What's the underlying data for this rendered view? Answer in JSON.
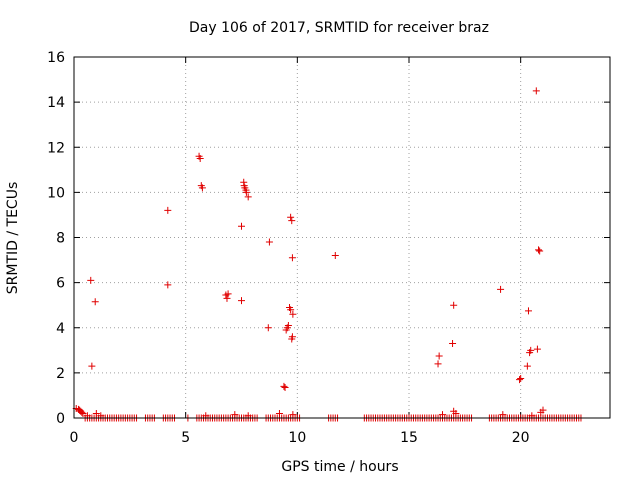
{
  "chart_data": {
    "type": "scatter",
    "title": "Day 106 of 2017, SRMTID for receiver braz",
    "xlabel": "GPS time / hours",
    "ylabel": "SRMTID / TECUs",
    "xlim": [
      0,
      24
    ],
    "ylim": [
      0,
      16
    ],
    "x_ticks": [
      0,
      5,
      10,
      15,
      20
    ],
    "y_ticks": [
      0,
      2,
      4,
      6,
      8,
      10,
      12,
      14,
      16
    ],
    "x_tick_labels": [
      "0",
      "5",
      "10",
      "15",
      "20"
    ],
    "y_tick_labels": [
      "0",
      "2",
      "4",
      "6",
      "8",
      "10",
      "12",
      "14",
      "16"
    ],
    "grid": true,
    "marker": "+",
    "color": "#e00000",
    "series": [
      {
        "name": "SRMTID",
        "points": [
          [
            0.1,
            0.42
          ],
          [
            0.2,
            0.38
          ],
          [
            0.25,
            0.35
          ],
          [
            0.3,
            0.3
          ],
          [
            0.35,
            0.25
          ],
          [
            0.4,
            0.2
          ],
          [
            0.75,
            6.1
          ],
          [
            0.8,
            2.3
          ],
          [
            0.95,
            5.15
          ],
          [
            4.2,
            9.2
          ],
          [
            4.2,
            5.9
          ],
          [
            5.6,
            11.6
          ],
          [
            5.65,
            11.5
          ],
          [
            5.7,
            10.3
          ],
          [
            5.75,
            10.2
          ],
          [
            6.8,
            5.45
          ],
          [
            6.85,
            5.3
          ],
          [
            6.9,
            5.5
          ],
          [
            7.5,
            8.5
          ],
          [
            7.5,
            5.2
          ],
          [
            7.6,
            10.45
          ],
          [
            7.62,
            10.3
          ],
          [
            7.65,
            10.2
          ],
          [
            7.7,
            10.1
          ],
          [
            7.72,
            10.0
          ],
          [
            7.8,
            9.8
          ],
          [
            8.7,
            4.0
          ],
          [
            8.75,
            7.8
          ],
          [
            9.4,
            1.4
          ],
          [
            9.45,
            1.35
          ],
          [
            9.5,
            3.9
          ],
          [
            9.55,
            4.0
          ],
          [
            9.6,
            4.1
          ],
          [
            9.65,
            4.9
          ],
          [
            9.7,
            4.8
          ],
          [
            9.75,
            3.5
          ],
          [
            9.78,
            3.6
          ],
          [
            9.8,
            4.6
          ],
          [
            9.7,
            8.9
          ],
          [
            9.75,
            8.75
          ],
          [
            9.78,
            7.1
          ],
          [
            11.7,
            7.2
          ],
          [
            16.3,
            2.4
          ],
          [
            16.35,
            2.75
          ],
          [
            16.95,
            3.3
          ],
          [
            17.0,
            5.0
          ],
          [
            19.1,
            5.7
          ],
          [
            19.95,
            1.7
          ],
          [
            20.0,
            1.75
          ],
          [
            20.3,
            2.3
          ],
          [
            20.35,
            4.75
          ],
          [
            20.4,
            2.9
          ],
          [
            20.45,
            3.0
          ],
          [
            20.7,
            14.5
          ],
          [
            20.75,
            3.05
          ],
          [
            20.8,
            7.45
          ],
          [
            20.85,
            7.4
          ],
          [
            0.6,
            0.1
          ],
          [
            1.0,
            0.2
          ],
          [
            1.2,
            0.1
          ],
          [
            5.9,
            0.1
          ],
          [
            7.2,
            0.15
          ],
          [
            7.8,
            0.1
          ],
          [
            9.2,
            0.2
          ],
          [
            9.8,
            0.15
          ],
          [
            16.5,
            0.15
          ],
          [
            17.0,
            0.3
          ],
          [
            17.1,
            0.2
          ],
          [
            19.2,
            0.15
          ],
          [
            20.5,
            0.1
          ],
          [
            20.9,
            0.25
          ],
          [
            21.0,
            0.35
          ]
        ],
        "zero_value_times": [
          0.5,
          0.6,
          0.7,
          0.8,
          0.9,
          1.0,
          1.1,
          1.2,
          1.3,
          1.4,
          1.5,
          1.6,
          1.7,
          1.8,
          1.9,
          2.0,
          2.1,
          2.2,
          2.3,
          2.4,
          2.5,
          2.6,
          2.7,
          2.8,
          3.2,
          3.3,
          3.4,
          3.5,
          3.6,
          4.0,
          4.1,
          4.2,
          4.3,
          4.4,
          4.5,
          5.1,
          5.5,
          5.6,
          5.7,
          5.8,
          5.9,
          6.0,
          6.1,
          6.2,
          6.3,
          6.4,
          6.5,
          6.6,
          6.7,
          6.8,
          6.9,
          7.0,
          7.1,
          7.2,
          7.3,
          7.4,
          7.5,
          7.6,
          7.7,
          7.8,
          7.9,
          8.0,
          8.1,
          8.2,
          8.6,
          8.7,
          8.8,
          8.9,
          9.0,
          9.1,
          9.2,
          9.3,
          9.4,
          9.5,
          9.6,
          9.7,
          9.8,
          9.9,
          10.0,
          10.1,
          11.4,
          11.5,
          11.6,
          11.7,
          11.8,
          13.0,
          13.1,
          13.2,
          13.3,
          13.4,
          13.5,
          13.6,
          13.7,
          13.8,
          13.9,
          14.0,
          14.1,
          14.2,
          14.3,
          14.4,
          14.5,
          14.6,
          14.7,
          14.8,
          14.9,
          15.0,
          15.1,
          15.2,
          15.3,
          15.4,
          15.5,
          15.6,
          15.7,
          15.8,
          15.9,
          16.0,
          16.1,
          16.2,
          16.3,
          16.4,
          16.5,
          16.6,
          16.7,
          16.8,
          16.9,
          17.0,
          17.1,
          17.2,
          17.3,
          17.4,
          17.5,
          17.6,
          17.7,
          17.8,
          18.6,
          18.7,
          18.8,
          18.9,
          19.0,
          19.1,
          19.2,
          19.3,
          19.4,
          19.5,
          19.6,
          19.7,
          19.8,
          19.9,
          20.0,
          20.1,
          20.2,
          20.3,
          20.4,
          20.5,
          20.6,
          20.7,
          20.8,
          20.9,
          21.0,
          21.1,
          21.2,
          21.3,
          21.4,
          21.5,
          21.6,
          21.7,
          21.8,
          21.9,
          22.0,
          22.1,
          22.2,
          22.3,
          22.4,
          22.5,
          22.6,
          22.7
        ]
      }
    ]
  }
}
